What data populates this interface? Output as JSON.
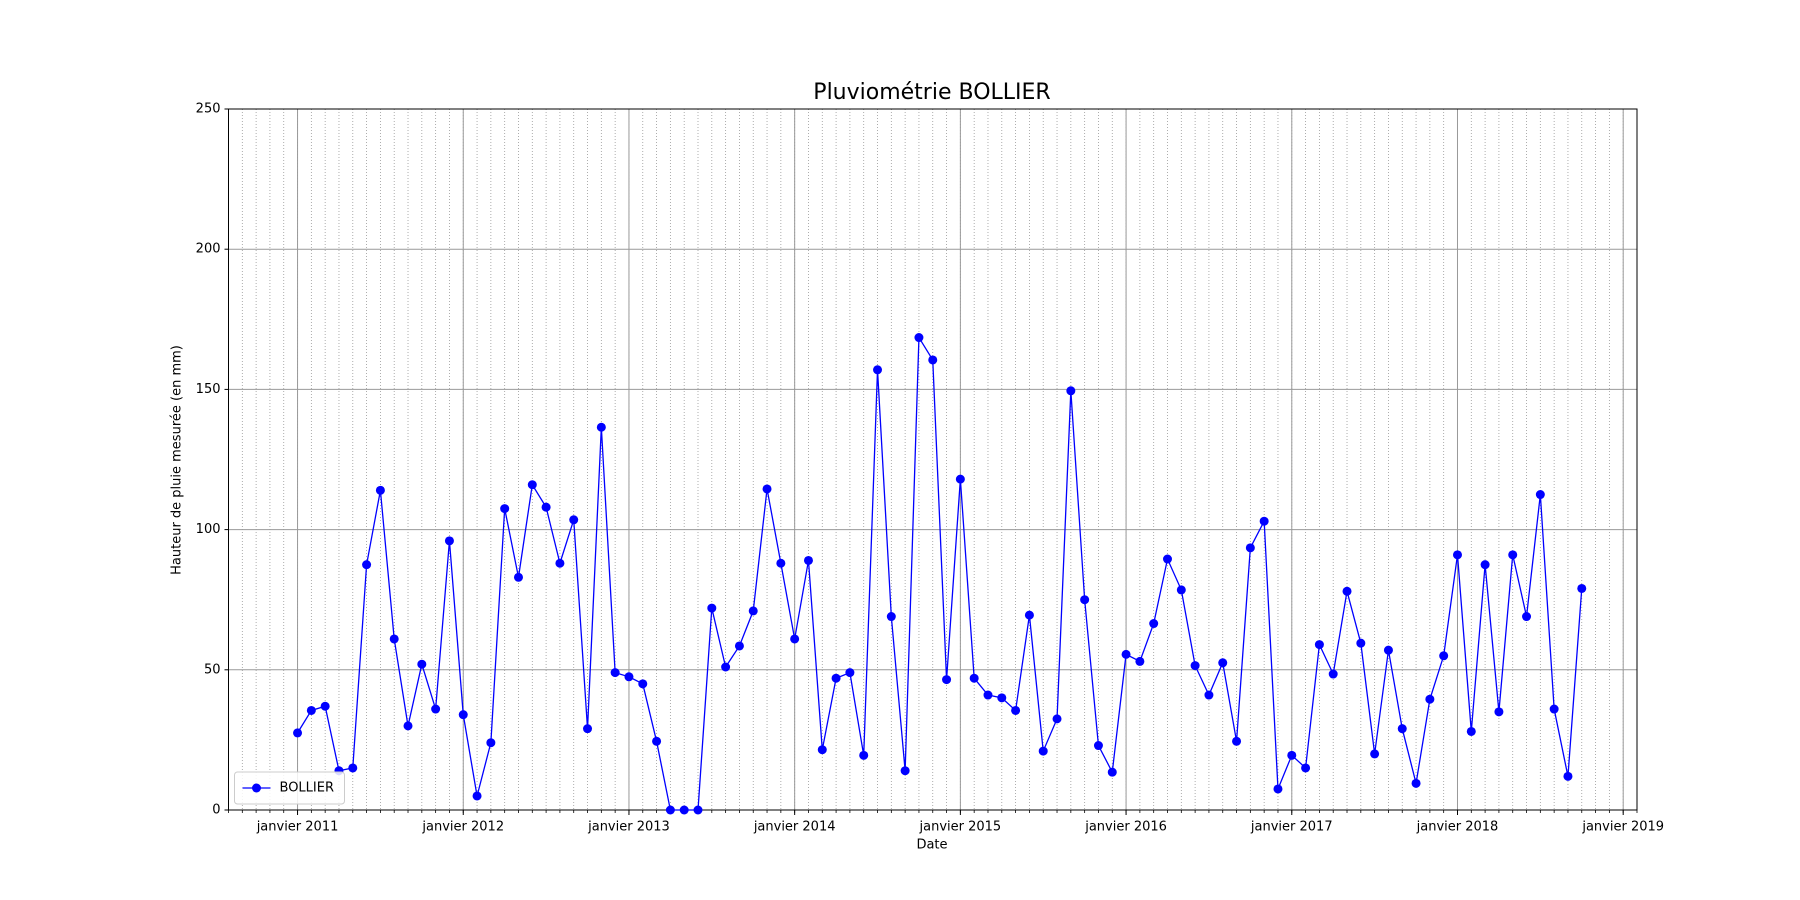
{
  "chart_data": {
    "type": "line",
    "title": "Pluviométrie BOLLIER",
    "xlabel": "Date",
    "ylabel": "Hauteur de pluie mesurée (en mm)",
    "x": [
      "2011-01",
      "2011-02",
      "2011-03",
      "2011-04",
      "2011-05",
      "2011-06",
      "2011-07",
      "2011-08",
      "2011-09",
      "2011-10",
      "2011-11",
      "2011-12",
      "2012-01",
      "2012-02",
      "2012-03",
      "2012-04",
      "2012-05",
      "2012-06",
      "2012-07",
      "2012-08",
      "2012-09",
      "2012-10",
      "2012-11",
      "2012-12",
      "2013-01",
      "2013-02",
      "2013-03",
      "2013-04",
      "2013-05",
      "2013-06",
      "2013-07",
      "2013-08",
      "2013-09",
      "2013-10",
      "2013-11",
      "2013-12",
      "2014-01",
      "2014-02",
      "2014-03",
      "2014-04",
      "2014-05",
      "2014-06",
      "2014-07",
      "2014-08",
      "2014-09",
      "2014-10",
      "2014-11",
      "2014-12",
      "2015-01",
      "2015-02",
      "2015-03",
      "2015-04",
      "2015-05",
      "2015-06",
      "2015-07",
      "2015-08",
      "2015-09",
      "2015-10",
      "2015-11",
      "2015-12",
      "2016-01",
      "2016-02",
      "2016-03",
      "2016-04",
      "2016-05",
      "2016-06",
      "2016-07",
      "2016-08",
      "2016-09",
      "2016-10",
      "2016-11",
      "2016-12",
      "2017-01",
      "2017-02",
      "2017-03",
      "2017-04",
      "2017-05",
      "2017-06",
      "2017-07",
      "2017-08",
      "2017-09",
      "2017-10",
      "2017-11",
      "2017-12",
      "2018-01",
      "2018-02",
      "2018-03",
      "2018-04",
      "2018-05",
      "2018-06",
      "2018-07",
      "2018-08",
      "2018-09",
      "2018-10"
    ],
    "series": [
      {
        "name": "BOLLIER",
        "color": "#0000ff",
        "values": [
          27.5,
          35.5,
          37,
          14,
          15,
          87.5,
          114,
          61,
          30,
          52,
          36,
          96,
          34,
          5,
          24,
          107.5,
          83,
          116,
          108,
          88,
          103.5,
          29,
          136.5,
          49,
          47.5,
          45,
          24.5,
          0,
          0,
          0,
          72,
          51,
          58.5,
          71,
          114.5,
          88,
          61,
          89,
          21.5,
          47,
          49,
          19.5,
          157,
          69,
          14,
          168.5,
          160.5,
          46.5,
          118,
          47,
          41,
          40,
          35.5,
          69.5,
          21,
          32.5,
          149.5,
          75,
          23,
          13.5,
          55.5,
          53,
          66.5,
          89.5,
          78.5,
          51.5,
          41,
          52.5,
          24.5,
          93.5,
          103,
          7.5,
          19.5,
          15,
          59,
          48.5,
          78,
          59.5,
          20,
          57,
          29,
          9.5,
          39.5,
          55,
          91,
          28,
          87.5,
          35,
          91,
          69,
          112.5,
          36,
          12,
          79
        ]
      }
    ],
    "xlim": [
      "2010-08",
      "2019-02"
    ],
    "xticks": [
      {
        "value": "2011-01",
        "label": "janvier 2011"
      },
      {
        "value": "2012-01",
        "label": "janvier 2012"
      },
      {
        "value": "2013-01",
        "label": "janvier 2013"
      },
      {
        "value": "2014-01",
        "label": "janvier 2014"
      },
      {
        "value": "2015-01",
        "label": "janvier 2015"
      },
      {
        "value": "2016-01",
        "label": "janvier 2016"
      },
      {
        "value": "2017-01",
        "label": "janvier 2017"
      },
      {
        "value": "2018-01",
        "label": "janvier 2018"
      },
      {
        "value": "2019-01",
        "label": "janvier 2019"
      }
    ],
    "ylim": [
      0,
      250
    ],
    "yticks": [
      0,
      50,
      100,
      150,
      200,
      250
    ],
    "grid": true,
    "minor_grid": true,
    "legend": "lower left"
  }
}
